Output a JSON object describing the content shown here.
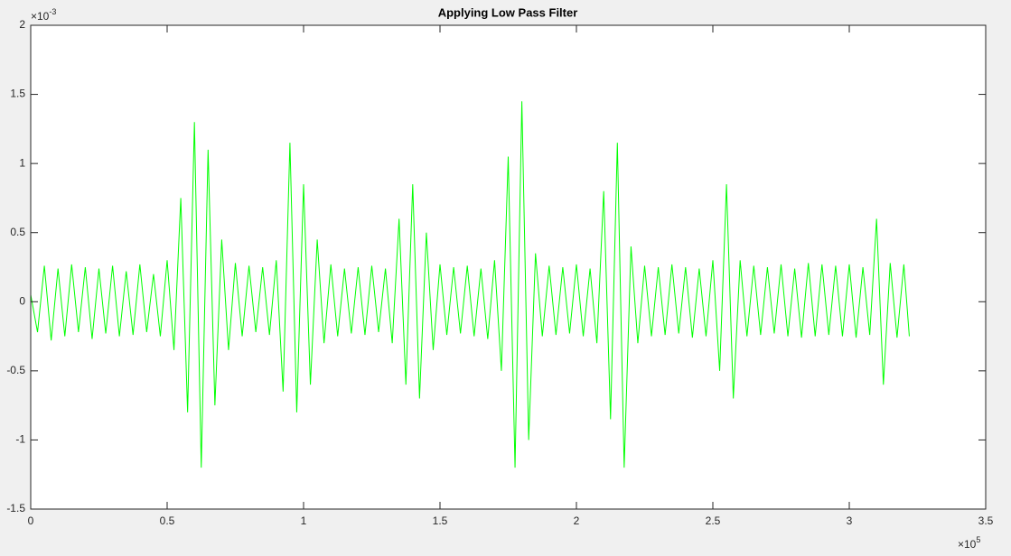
{
  "chart_data": {
    "type": "line",
    "title": "Applying Low Pass Filter",
    "color": "#00ff00",
    "x": [
      0,
      0.025,
      0.05,
      0.075,
      0.1,
      0.125,
      0.15,
      0.175,
      0.2,
      0.225,
      0.25,
      0.275,
      0.3,
      0.325,
      0.35,
      0.375,
      0.4,
      0.425,
      0.45,
      0.475,
      0.5,
      0.525,
      0.55,
      0.575,
      0.6,
      0.625,
      0.65,
      0.675,
      0.7,
      0.725,
      0.75,
      0.775,
      0.8,
      0.825,
      0.85,
      0.875,
      0.9,
      0.925,
      0.95,
      0.975,
      1.0,
      1.025,
      1.05,
      1.075,
      1.1,
      1.125,
      1.15,
      1.175,
      1.2,
      1.225,
      1.25,
      1.275,
      1.3,
      1.325,
      1.35,
      1.375,
      1.4,
      1.425,
      1.45,
      1.475,
      1.5,
      1.525,
      1.55,
      1.575,
      1.6,
      1.625,
      1.65,
      1.675,
      1.7,
      1.725,
      1.75,
      1.775,
      1.8,
      1.825,
      1.85,
      1.875,
      1.9,
      1.925,
      1.95,
      1.975,
      2.0,
      2.025,
      2.05,
      2.075,
      2.1,
      2.125,
      2.15,
      2.175,
      2.2,
      2.225,
      2.25,
      2.275,
      2.3,
      2.325,
      2.35,
      2.375,
      2.4,
      2.425,
      2.45,
      2.475,
      2.5,
      2.525,
      2.55,
      2.575,
      2.6,
      2.625,
      2.65,
      2.675,
      2.7,
      2.725,
      2.75,
      2.775,
      2.8,
      2.825,
      2.85,
      2.875,
      2.9,
      2.925,
      2.95,
      2.975,
      3.0,
      3.025,
      3.05,
      3.075,
      3.1,
      3.125,
      3.15,
      3.175,
      3.2,
      3.22
    ],
    "values": [
      0.05,
      -0.22,
      0.26,
      -0.28,
      0.24,
      -0.25,
      0.27,
      -0.22,
      0.25,
      -0.27,
      0.24,
      -0.23,
      0.26,
      -0.25,
      0.22,
      -0.24,
      0.27,
      -0.22,
      0.2,
      -0.25,
      0.3,
      -0.35,
      0.75,
      -0.8,
      1.3,
      -1.2,
      1.1,
      -0.75,
      0.45,
      -0.35,
      0.28,
      -0.25,
      0.26,
      -0.22,
      0.25,
      -0.24,
      0.3,
      -0.65,
      1.15,
      -0.8,
      0.85,
      -0.6,
      0.45,
      -0.3,
      0.27,
      -0.25,
      0.24,
      -0.23,
      0.25,
      -0.24,
      0.26,
      -0.22,
      0.24,
      -0.3,
      0.6,
      -0.6,
      0.85,
      -0.7,
      0.5,
      -0.35,
      0.27,
      -0.24,
      0.25,
      -0.23,
      0.26,
      -0.25,
      0.24,
      -0.27,
      0.3,
      -0.5,
      1.05,
      -1.2,
      1.45,
      -1.0,
      0.35,
      -0.25,
      0.26,
      -0.24,
      0.25,
      -0.23,
      0.27,
      -0.25,
      0.24,
      -0.3,
      0.8,
      -0.85,
      1.15,
      -1.2,
      0.4,
      -0.3,
      0.26,
      -0.25,
      0.25,
      -0.24,
      0.27,
      -0.23,
      0.25,
      -0.26,
      0.24,
      -0.25,
      0.3,
      -0.5,
      0.85,
      -0.7,
      0.3,
      -0.25,
      0.26,
      -0.24,
      0.25,
      -0.23,
      0.27,
      -0.25,
      0.24,
      -0.26,
      0.28,
      -0.25,
      0.27,
      -0.24,
      0.26,
      -0.25,
      0.27,
      -0.26,
      0.25,
      -0.24,
      0.6,
      -0.6,
      0.28,
      -0.26,
      0.27,
      -0.25
    ],
    "xlim": [
      0,
      3.5
    ],
    "ylim": [
      -1.5,
      2
    ],
    "xticks": [
      0,
      0.5,
      1,
      1.5,
      2,
      2.5,
      3,
      3.5
    ],
    "yticks": [
      -1.5,
      -1,
      -0.5,
      0,
      0.5,
      1,
      1.5,
      2
    ],
    "y_multiplier": {
      "base": "×10",
      "exponent": "-3"
    },
    "x_multiplier": {
      "base": "×10",
      "exponent": "5"
    }
  }
}
